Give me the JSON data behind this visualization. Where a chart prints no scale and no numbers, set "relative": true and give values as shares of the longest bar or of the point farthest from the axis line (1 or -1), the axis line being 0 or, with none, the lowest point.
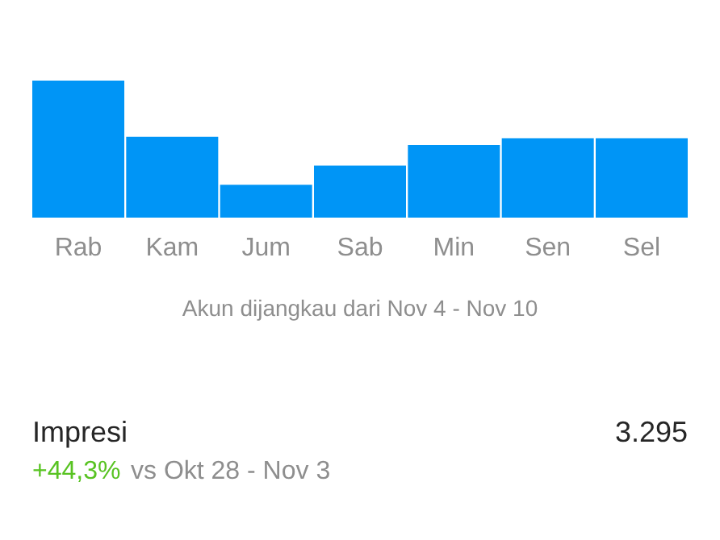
{
  "chart_data": {
    "type": "bar",
    "relative": true,
    "color": "#0095f6",
    "categories": [
      "Rab",
      "Kam",
      "Jum",
      "Sab",
      "Min",
      "Sen",
      "Sel"
    ],
    "values": [
      1,
      0.59,
      0.24,
      0.38,
      0.53,
      0.58,
      0.58
    ],
    "grid": false,
    "tick_labels": "x",
    "annotations": [
      "Akun dijangkau dari Nov 4 - Nov 10",
      "Impresi",
      "3.295",
      "+44,3%",
      "vs Okt 28 - Nov 3"
    ]
  }
}
